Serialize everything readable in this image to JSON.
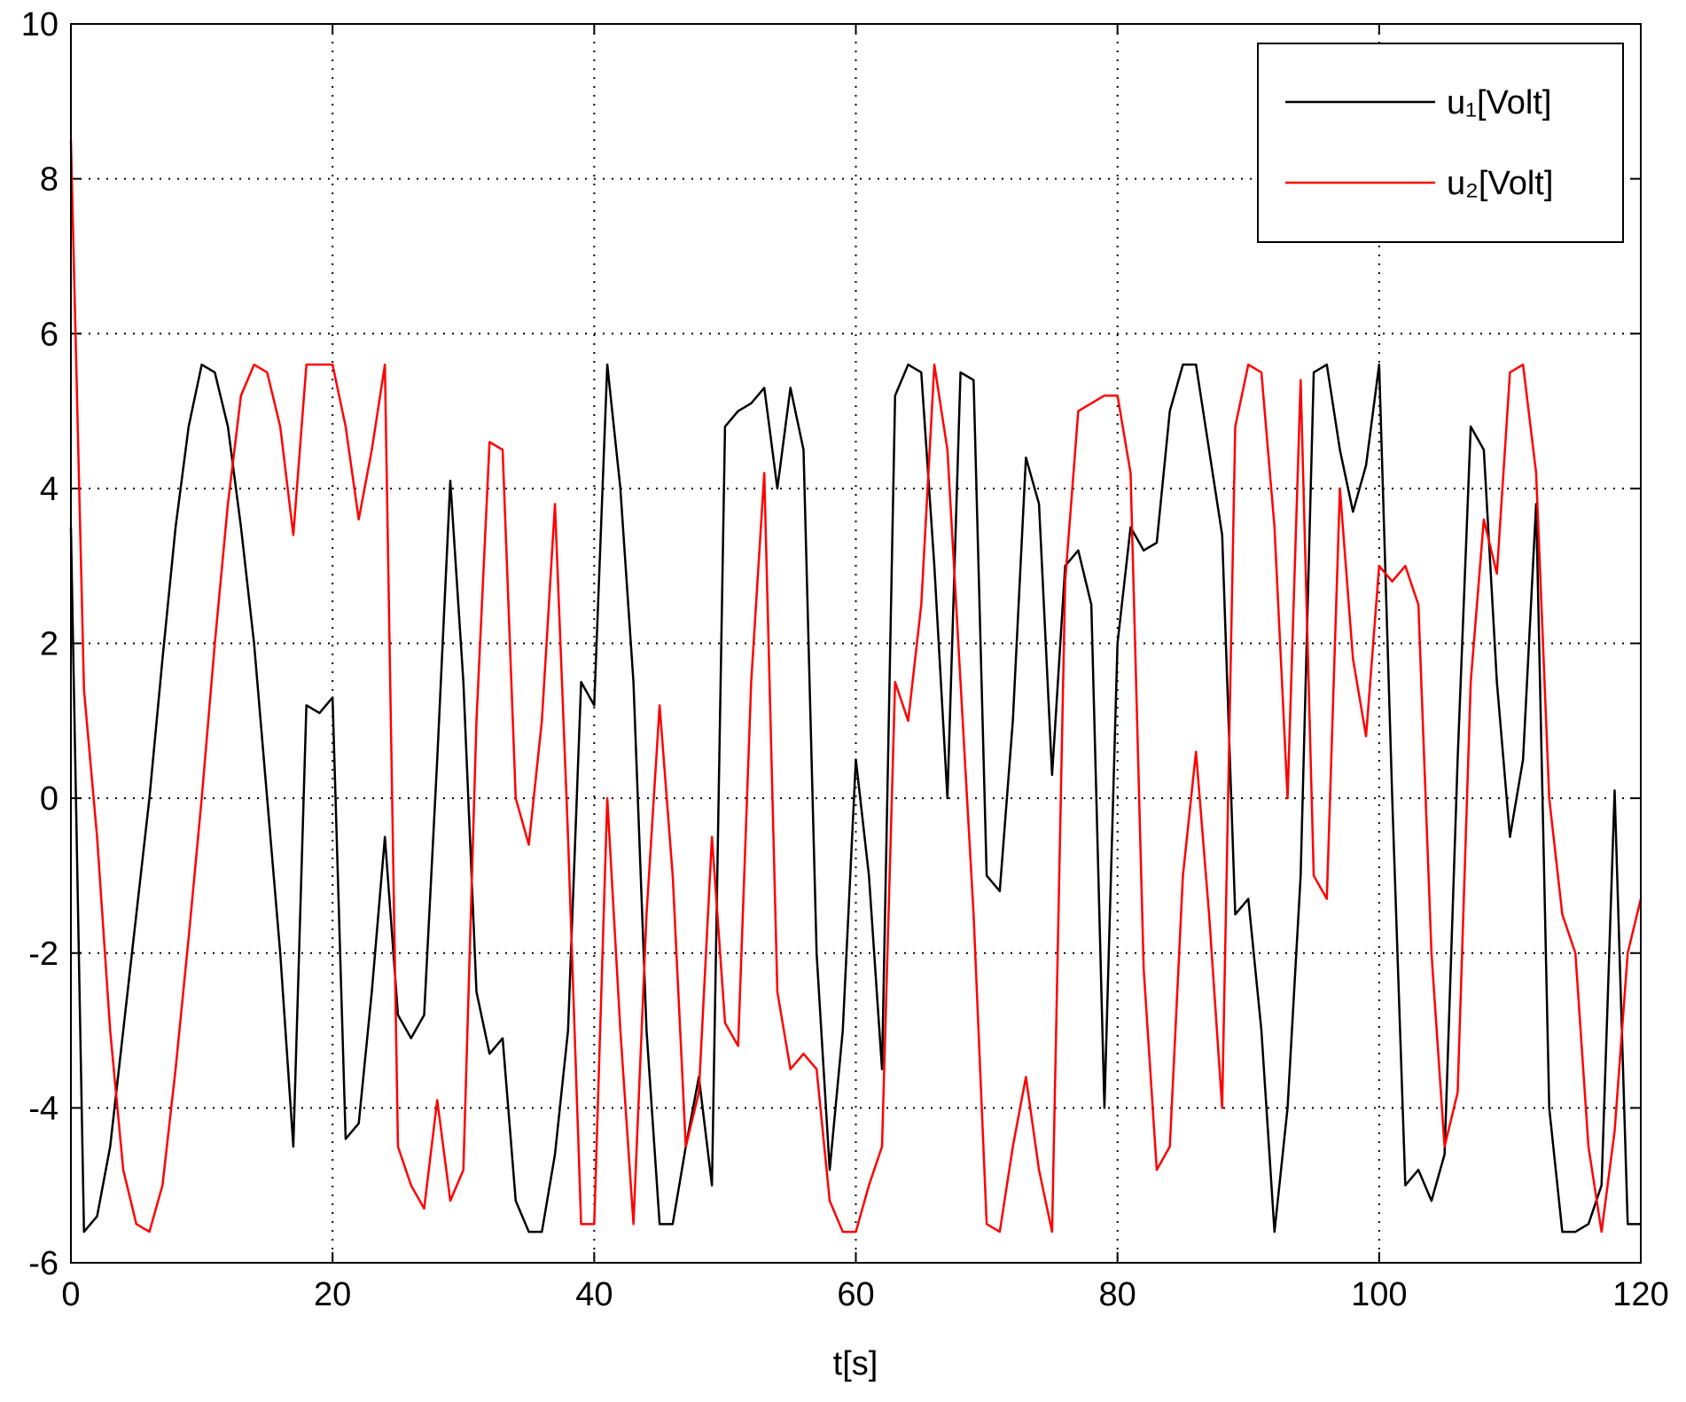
{
  "chart_data": {
    "type": "line",
    "x_label": "t[s]",
    "x": [
      0,
      1,
      2,
      3,
      4,
      5,
      6,
      7,
      8,
      9,
      10,
      11,
      12,
      13,
      14,
      15,
      16,
      17,
      18,
      19,
      20,
      21,
      22,
      23,
      24,
      25,
      26,
      27,
      28,
      29,
      30,
      31,
      32,
      33,
      34,
      35,
      36,
      37,
      38,
      39,
      40,
      41,
      42,
      43,
      44,
      45,
      46,
      47,
      48,
      49,
      50,
      51,
      52,
      53,
      54,
      55,
      56,
      57,
      58,
      59,
      60,
      61,
      62,
      63,
      64,
      65,
      66,
      67,
      68,
      69,
      70,
      71,
      72,
      73,
      74,
      75,
      76,
      77,
      78,
      79,
      80,
      81,
      82,
      83,
      84,
      85,
      86,
      87,
      88,
      89,
      90,
      91,
      92,
      93,
      94,
      95,
      96,
      97,
      98,
      99,
      100,
      101,
      102,
      103,
      104,
      105,
      106,
      107,
      108,
      109,
      110,
      111,
      112,
      113,
      114,
      115,
      116,
      117,
      118,
      119,
      120
    ],
    "series": [
      {
        "name": "u₁[Volt]",
        "color": "#000000",
        "values": [
          3.5,
          -5.6,
          -5.4,
          -4.5,
          -3,
          -1.5,
          0,
          1.8,
          3.5,
          4.8,
          5.6,
          5.5,
          4.8,
          3.5,
          2,
          0,
          -2,
          -4.5,
          1.2,
          1.1,
          1.3,
          -4.4,
          -4.2,
          -2.5,
          -0.5,
          -2.8,
          -3.1,
          -2.8,
          0.5,
          4.1,
          1.5,
          -2.5,
          -3.3,
          -3.1,
          -5.2,
          -5.6,
          -5.6,
          -4.6,
          -3,
          1.5,
          1.2,
          5.6,
          4,
          1.5,
          -3,
          -5.5,
          -5.5,
          -4.5,
          -3.6,
          -5,
          4.8,
          5,
          5.1,
          5.3,
          4,
          5.3,
          4.5,
          -2,
          -4.8,
          -3,
          0.5,
          -1,
          -3.5,
          5.2,
          5.6,
          5.5,
          3,
          0,
          5.5,
          5.4,
          -1,
          -1.2,
          1,
          4.4,
          3.8,
          0.3,
          3,
          3.2,
          2.5,
          -4,
          2,
          3.5,
          3.2,
          3.3,
          5,
          5.6,
          5.6,
          4.5,
          3.4,
          -1.5,
          -1.3,
          -3,
          -5.6,
          -4,
          -1,
          5.5,
          5.6,
          4.5,
          3.7,
          4.3,
          5.6,
          0,
          -5,
          -4.8,
          -5.2,
          -4.6,
          0.5,
          4.8,
          4.5,
          1.5,
          -0.5,
          0.5,
          3.8,
          -4,
          -5.6,
          -5.6,
          -5.5,
          -5,
          0.1,
          -5.5,
          -5.5
        ]
      },
      {
        "name": "u₂[Volt]",
        "color": "#ff0000",
        "values": [
          8.5,
          1.4,
          -0.5,
          -3,
          -4.8,
          -5.5,
          -5.6,
          -5,
          -3.5,
          -1.8,
          0,
          2,
          3.8,
          5.2,
          5.6,
          5.5,
          4.8,
          3.4,
          5.6,
          5.6,
          5.6,
          4.8,
          3.6,
          4.5,
          5.6,
          -4.5,
          -5,
          -5.3,
          -3.9,
          -5.2,
          -4.8,
          1,
          4.6,
          4.5,
          0,
          -0.6,
          1,
          3.8,
          -0.5,
          -5.5,
          -5.5,
          0,
          -3,
          -5.5,
          -1.5,
          1.2,
          -1,
          -4.5,
          -3.8,
          -0.5,
          -2.9,
          -3.2,
          1.5,
          4.2,
          -2.5,
          -3.5,
          -3.3,
          -3.5,
          -5.2,
          -5.6,
          -5.6,
          -5,
          -4.5,
          1.5,
          1,
          2.5,
          5.6,
          4.5,
          1.5,
          -1.5,
          -5.5,
          -5.6,
          -4.5,
          -3.6,
          -4.8,
          -5.6,
          2.8,
          5,
          5.1,
          5.2,
          5.2,
          4.2,
          -2.2,
          -4.8,
          -4.5,
          -1,
          0.6,
          -1.5,
          -4,
          4.8,
          5.6,
          5.5,
          3.5,
          0,
          5.4,
          -1,
          -1.3,
          4,
          1.8,
          0.8,
          3,
          2.8,
          3,
          2.5,
          -2,
          -4.5,
          -3.8,
          1.5,
          3.6,
          2.9,
          5.5,
          5.6,
          4.2,
          0,
          -1.5,
          -2,
          -4.5,
          -5.6,
          -4.3,
          -2,
          -1.3
        ]
      }
    ],
    "xlim": [
      0,
      120
    ],
    "ylim": [
      -6,
      10
    ],
    "xticks": [
      0,
      20,
      40,
      60,
      80,
      100,
      120
    ],
    "yticks": [
      -6,
      -4,
      -2,
      0,
      2,
      4,
      6,
      8,
      10
    ],
    "grid": true,
    "legend": "northeast"
  }
}
